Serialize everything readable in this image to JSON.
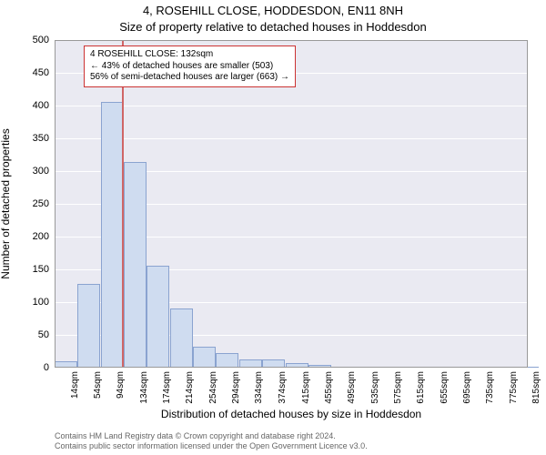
{
  "title_line1": "4, ROSEHILL CLOSE, HODDESDON, EN11 8NH",
  "title_line2": "Size of property relative to detached houses in Hoddesdon",
  "ylabel": "Number of detached properties",
  "xlabel": "Distribution of detached houses by size in Hoddesdon",
  "chart": {
    "type": "histogram",
    "plot_bg": "#eaeaf2",
    "grid_color": "#ffffff",
    "border_color": "#999999",
    "bar_fill": "#cfdcf0",
    "bar_stroke": "#8aa3d0",
    "marker_color": "#d06666",
    "marker_x_value_sqm": 132,
    "x_label_suffix": "sqm",
    "x_tick_values": [
      14,
      54,
      94,
      134,
      174,
      214,
      254,
      294,
      334,
      374,
      415,
      455,
      495,
      535,
      575,
      615,
      655,
      695,
      735,
      775,
      815
    ],
    "bars": [
      {
        "x": 14,
        "count": 10
      },
      {
        "x": 54,
        "count": 128
      },
      {
        "x": 94,
        "count": 405
      },
      {
        "x": 134,
        "count": 314
      },
      {
        "x": 174,
        "count": 155
      },
      {
        "x": 214,
        "count": 90
      },
      {
        "x": 254,
        "count": 32
      },
      {
        "x": 294,
        "count": 22
      },
      {
        "x": 334,
        "count": 12
      },
      {
        "x": 374,
        "count": 12
      },
      {
        "x": 415,
        "count": 7
      },
      {
        "x": 455,
        "count": 4
      },
      {
        "x": 495,
        "count": 2
      },
      {
        "x": 535,
        "count": 0
      },
      {
        "x": 575,
        "count": 1
      },
      {
        "x": 615,
        "count": 1
      },
      {
        "x": 655,
        "count": 0
      },
      {
        "x": 695,
        "count": 2
      },
      {
        "x": 735,
        "count": 0
      },
      {
        "x": 775,
        "count": 1
      },
      {
        "x": 815,
        "count": 0
      }
    ],
    "x_min": 14,
    "x_max": 835,
    "bar_width_sqm": 40,
    "y_min": 0,
    "y_max": 500,
    "y_ticks": [
      0,
      50,
      100,
      150,
      200,
      250,
      300,
      350,
      400,
      450,
      500
    ]
  },
  "annotation": {
    "line1": "4 ROSEHILL CLOSE: 132sqm",
    "line2": "← 43% of detached houses are smaller (503)",
    "line3": "56% of semi-detached houses are larger (663) →"
  },
  "footer": {
    "line1": "Contains HM Land Registry data © Crown copyright and database right 2024.",
    "line2": "Contains public sector information licensed under the Open Government Licence v3.0."
  }
}
